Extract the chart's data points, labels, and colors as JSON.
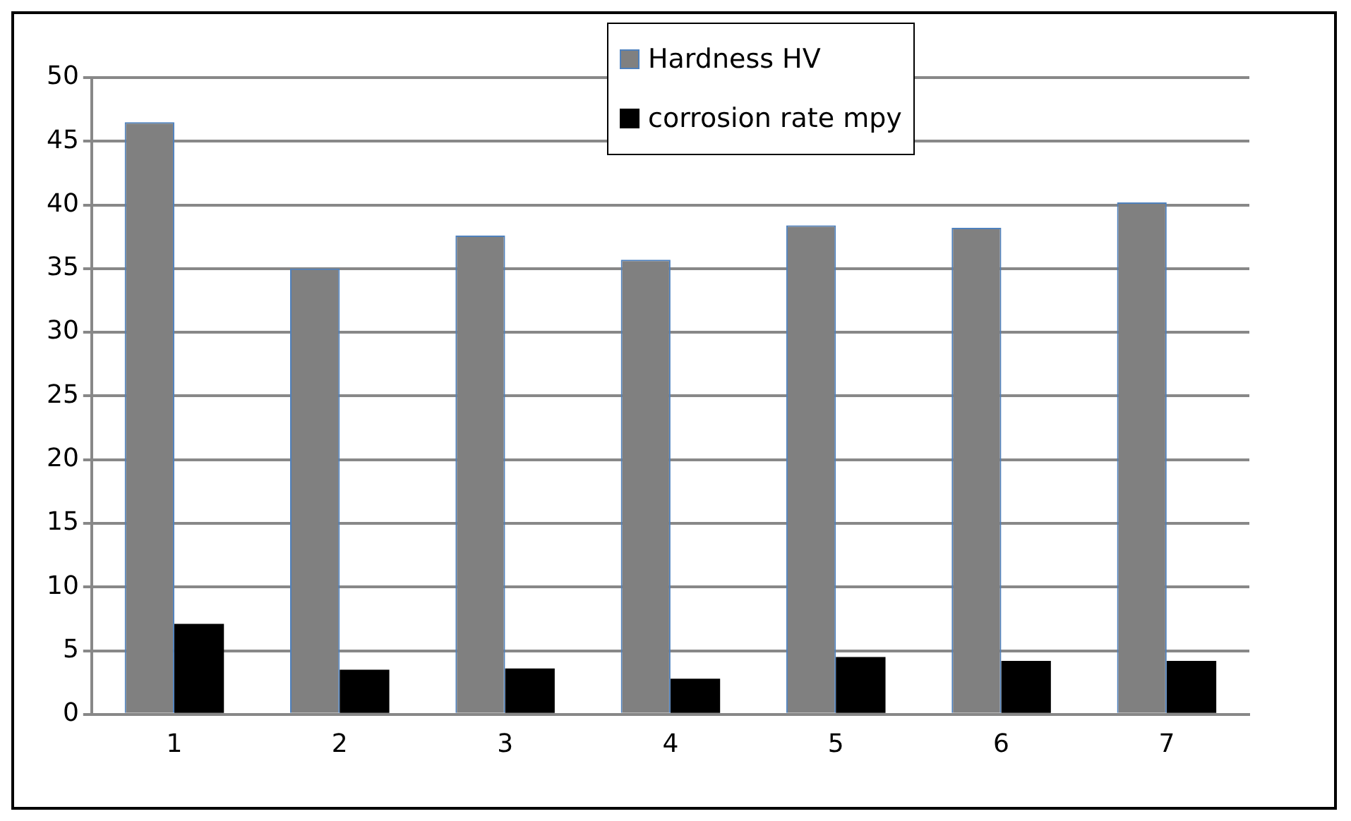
{
  "chart_data": {
    "type": "bar",
    "categories": [
      "1",
      "2",
      "3",
      "4",
      "5",
      "6",
      "7"
    ],
    "series": [
      {
        "name": "Hardness HV",
        "color": "#808080",
        "values": [
          46.5,
          35,
          37.6,
          35.7,
          38.4,
          38.2,
          40.2
        ]
      },
      {
        "name": "corrosion rate mpy",
        "color": "#000000",
        "values": [
          7.1,
          3.5,
          3.6,
          2.8,
          4.5,
          4.2,
          4.2
        ]
      }
    ],
    "ylim": [
      0,
      50
    ],
    "yticks": [
      0,
      5,
      10,
      15,
      20,
      25,
      30,
      35,
      40,
      45,
      50
    ],
    "grid": "y",
    "legend": "top"
  }
}
